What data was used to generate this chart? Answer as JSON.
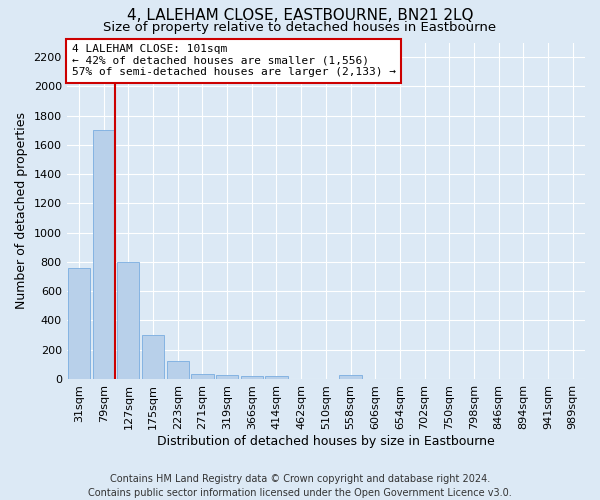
{
  "title": "4, LALEHAM CLOSE, EASTBOURNE, BN21 2LQ",
  "subtitle": "Size of property relative to detached houses in Eastbourne",
  "xlabel": "Distribution of detached houses by size in Eastbourne",
  "ylabel": "Number of detached properties",
  "footer_line1": "Contains HM Land Registry data © Crown copyright and database right 2024.",
  "footer_line2": "Contains public sector information licensed under the Open Government Licence v3.0.",
  "categories": [
    "31sqm",
    "79sqm",
    "127sqm",
    "175sqm",
    "223sqm",
    "271sqm",
    "319sqm",
    "366sqm",
    "414sqm",
    "462sqm",
    "510sqm",
    "558sqm",
    "606sqm",
    "654sqm",
    "702sqm",
    "750sqm",
    "798sqm",
    "846sqm",
    "894sqm",
    "941sqm",
    "989sqm"
  ],
  "values": [
    760,
    1700,
    800,
    300,
    120,
    35,
    30,
    22,
    20,
    0,
    0,
    25,
    0,
    0,
    0,
    0,
    0,
    0,
    0,
    0,
    0
  ],
  "bar_color": "#b8d0ea",
  "bar_edge_color": "#7aade0",
  "vline_x_index": 1,
  "vline_color": "#cc0000",
  "annotation_text": "4 LALEHAM CLOSE: 101sqm\n← 42% of detached houses are smaller (1,556)\n57% of semi-detached houses are larger (2,133) →",
  "annotation_box_facecolor": "#ffffff",
  "annotation_box_edgecolor": "#cc0000",
  "ylim": [
    0,
    2300
  ],
  "yticks": [
    0,
    200,
    400,
    600,
    800,
    1000,
    1200,
    1400,
    1600,
    1800,
    2000,
    2200
  ],
  "bg_color": "#dce9f5",
  "grid_color": "#ffffff",
  "title_fontsize": 11,
  "subtitle_fontsize": 9.5,
  "axis_label_fontsize": 9,
  "tick_fontsize": 8,
  "annotation_fontsize": 8,
  "footer_fontsize": 7
}
